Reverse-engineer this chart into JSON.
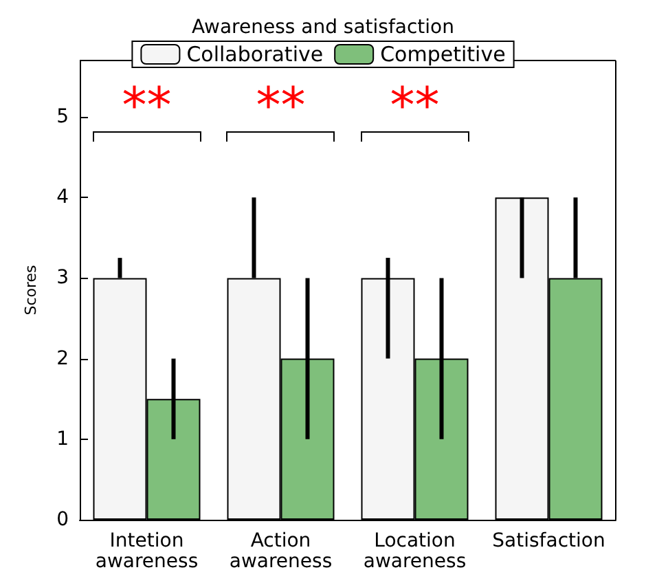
{
  "chart_data": {
    "type": "bar",
    "title": "Awareness and satisfaction",
    "ylabel": "Scores",
    "categories": [
      "Intetion\nawareness",
      "Action\nawareness",
      "Location\nawareness",
      "Satisfaction"
    ],
    "series": [
      {
        "name": "Collaborative",
        "color": "#f5f5f5",
        "values": [
          3,
          3,
          3,
          4
        ],
        "errors": [
          [
            3,
            3.25
          ],
          [
            3,
            4
          ],
          [
            2,
            3.25
          ],
          [
            3,
            4
          ]
        ]
      },
      {
        "name": "Competitive",
        "color": "#7fbf7b",
        "values": [
          1.5,
          2,
          2,
          3
        ],
        "errors": [
          [
            1,
            2
          ],
          [
            1,
            3
          ],
          [
            1,
            3
          ],
          [
            3,
            4
          ]
        ]
      }
    ],
    "ylim": [
      0,
      5.7
    ],
    "yticks": [
      0,
      1,
      2,
      3,
      4,
      5
    ],
    "grid": false,
    "legend": "top",
    "annotations": [
      "**",
      "**",
      "**"
    ]
  }
}
